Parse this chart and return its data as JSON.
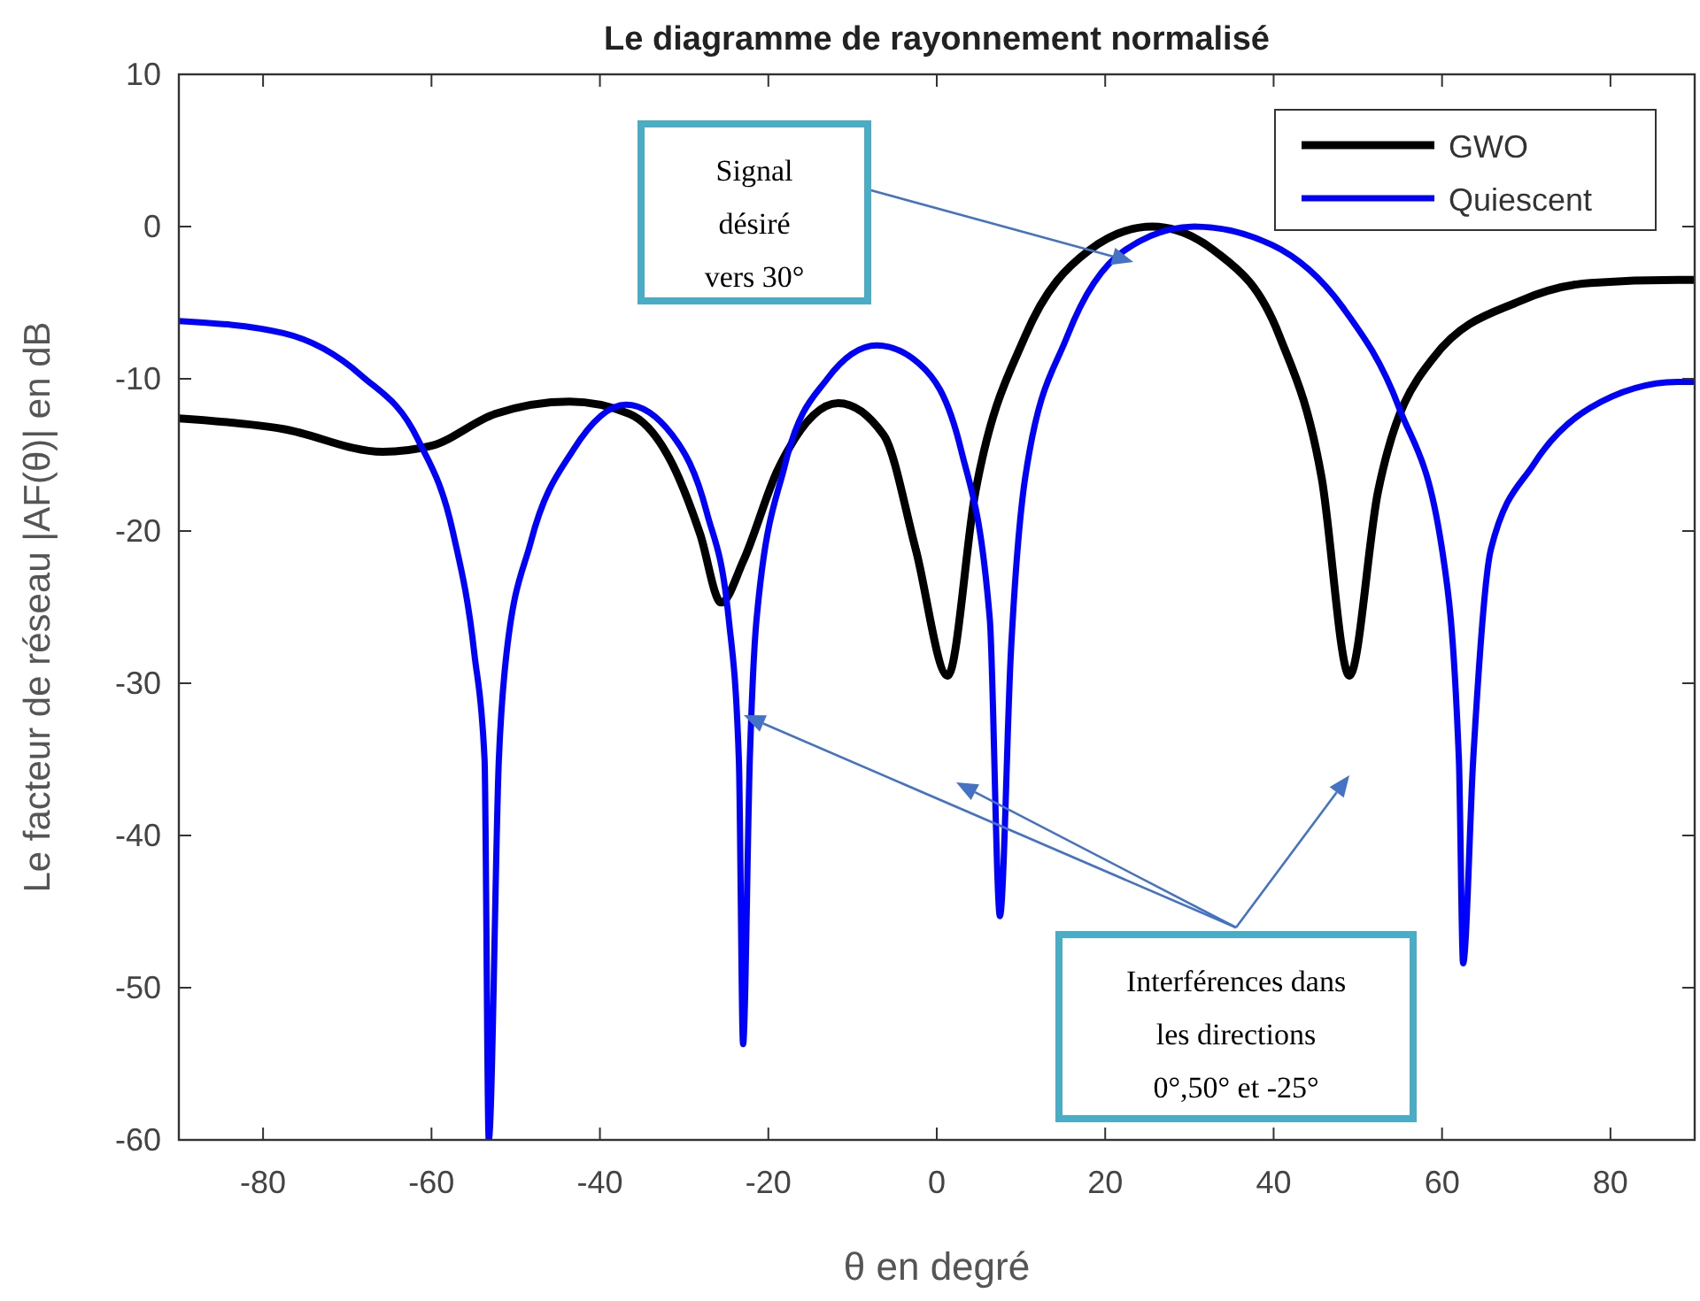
{
  "chart_data": {
    "type": "line",
    "title": "Le diagramme de rayonnement normalisé",
    "xlabel": "θ en degré",
    "ylabel": "Le facteur de réseau |AF(θ)| en dB",
    "xlim": [
      -90,
      90
    ],
    "xticks": [
      -80,
      -60,
      -40,
      -20,
      0,
      20,
      40,
      60,
      80
    ],
    "ylim": [
      -60,
      10
    ],
    "yticks": [
      -60,
      -50,
      -40,
      -30,
      -20,
      -10,
      0,
      10
    ],
    "grid": false,
    "legend": "top right",
    "line_style": "solid",
    "marker": "none",
    "series": [
      {
        "name": "GWO",
        "color": "#000000",
        "x": [
          -90,
          -77.6,
          -65.8,
          -60,
          -52.4,
          -43.6,
          -36.5,
          -31.4,
          -28.1,
          -25.6,
          -23,
          -18.9,
          -11.7,
          -6.3,
          -2.5,
          1.3,
          4.6,
          10.5,
          18,
          25.6,
          33,
          40.7,
          45.7,
          49,
          52.4,
          59,
          69.2,
          77.6,
          88,
          90
        ],
        "values": [
          -12.6,
          -13.3,
          -14.8,
          -14.4,
          -12.3,
          -11.5,
          -12.3,
          -15.6,
          -20.2,
          -24.7,
          -22,
          -16,
          -11.6,
          -13.7,
          -21.2,
          -29.5,
          -17.4,
          -7.2,
          -1.6,
          0,
          -1.6,
          -7.2,
          -16.5,
          -29.5,
          -17.4,
          -8.6,
          -4.9,
          -3.7,
          -3.5,
          -3.5
        ]
      },
      {
        "name": "Quiescent",
        "color": "#0000ff",
        "x": [
          -90,
          -77.6,
          -68.3,
          -61.6,
          -57.4,
          -54.9,
          -53.7,
          -53.2,
          -52,
          -51.2,
          -48.2,
          -43.2,
          -36.9,
          -31.4,
          -27.3,
          -24.7,
          -23.5,
          -23,
          -22.2,
          -21.4,
          -18,
          -13,
          -7.1,
          -2.1,
          2.9,
          6.3,
          7.5,
          8.8,
          10.5,
          15.5,
          22.2,
          30.6,
          39.8,
          48.2,
          54.9,
          60,
          62,
          62.5,
          63.7,
          65.8,
          70.9,
          77.6,
          88,
          90
        ],
        "values": [
          -6.2,
          -7,
          -9.8,
          -14,
          -20.2,
          -28.1,
          -35,
          -60,
          -35,
          -28.6,
          -20.7,
          -14.7,
          -11.7,
          -13.7,
          -18.8,
          -25.8,
          -35,
          -53.7,
          -35,
          -25.8,
          -15.6,
          -10,
          -7.8,
          -9,
          -14.7,
          -25.8,
          -45.3,
          -28,
          -16.5,
          -7.2,
          -1.6,
          0,
          -1.2,
          -5.3,
          -11.9,
          -21.2,
          -35,
          -48.4,
          -35,
          -21.2,
          -15.6,
          -11.9,
          -10.2,
          -10.2
        ]
      }
    ],
    "annotations": [
      "Signal\ndésiré\nvers 30°",
      "Interférences dans\nles directions\n0°,50° et -25°"
    ]
  }
}
